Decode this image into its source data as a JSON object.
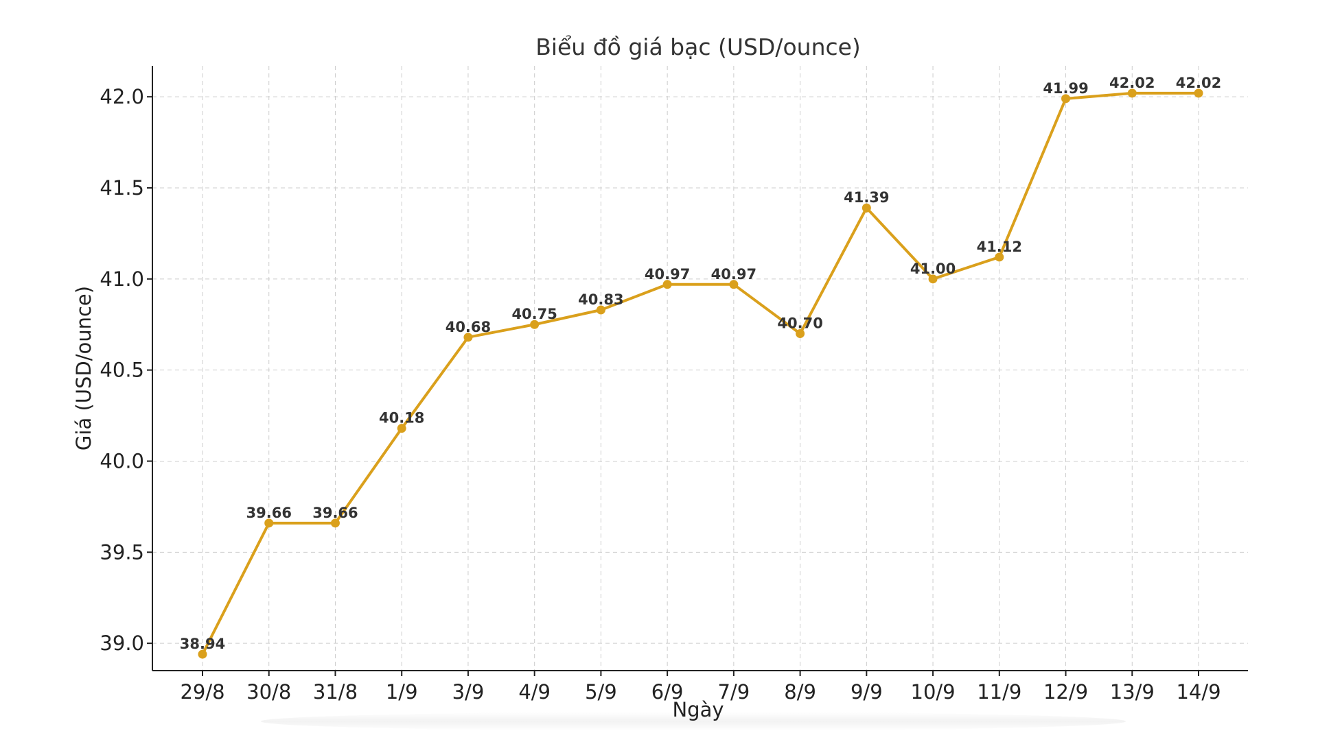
{
  "chart_data": {
    "type": "line",
    "title": "Biểu đồ giá bạc (USD/ounce)",
    "xlabel": "Ngày",
    "ylabel": "Giá (USD/ounce)",
    "categories": [
      "29/8",
      "30/8",
      "31/8",
      "1/9",
      "3/9",
      "4/9",
      "5/9",
      "6/9",
      "7/9",
      "8/9",
      "9/9",
      "10/9",
      "11/9",
      "12/9",
      "13/9",
      "14/9"
    ],
    "series": [
      {
        "values": [
          38.94,
          39.66,
          39.66,
          40.18,
          40.68,
          40.75,
          40.83,
          40.97,
          40.97,
          40.7,
          41.39,
          41.0,
          41.12,
          41.99,
          42.02,
          42.02
        ],
        "color": "#DAA01C"
      }
    ],
    "data_labels": [
      "38.94",
      "39.66",
      "39.66",
      "40.18",
      "40.68",
      "40.75",
      "40.83",
      "40.97",
      "40.97",
      "40.70",
      "41.39",
      "41.00",
      "41.12",
      "41.99",
      "42.02",
      "42.02"
    ],
    "ylim": [
      38.85,
      42.17
    ],
    "yticks": [
      39.0,
      39.5,
      40.0,
      40.5,
      41.0,
      41.5,
      42.0
    ],
    "ytick_labels": [
      "39.0",
      "39.5",
      "40.0",
      "40.5",
      "41.0",
      "41.5",
      "42.0"
    ],
    "grid": true,
    "legend": "none"
  }
}
